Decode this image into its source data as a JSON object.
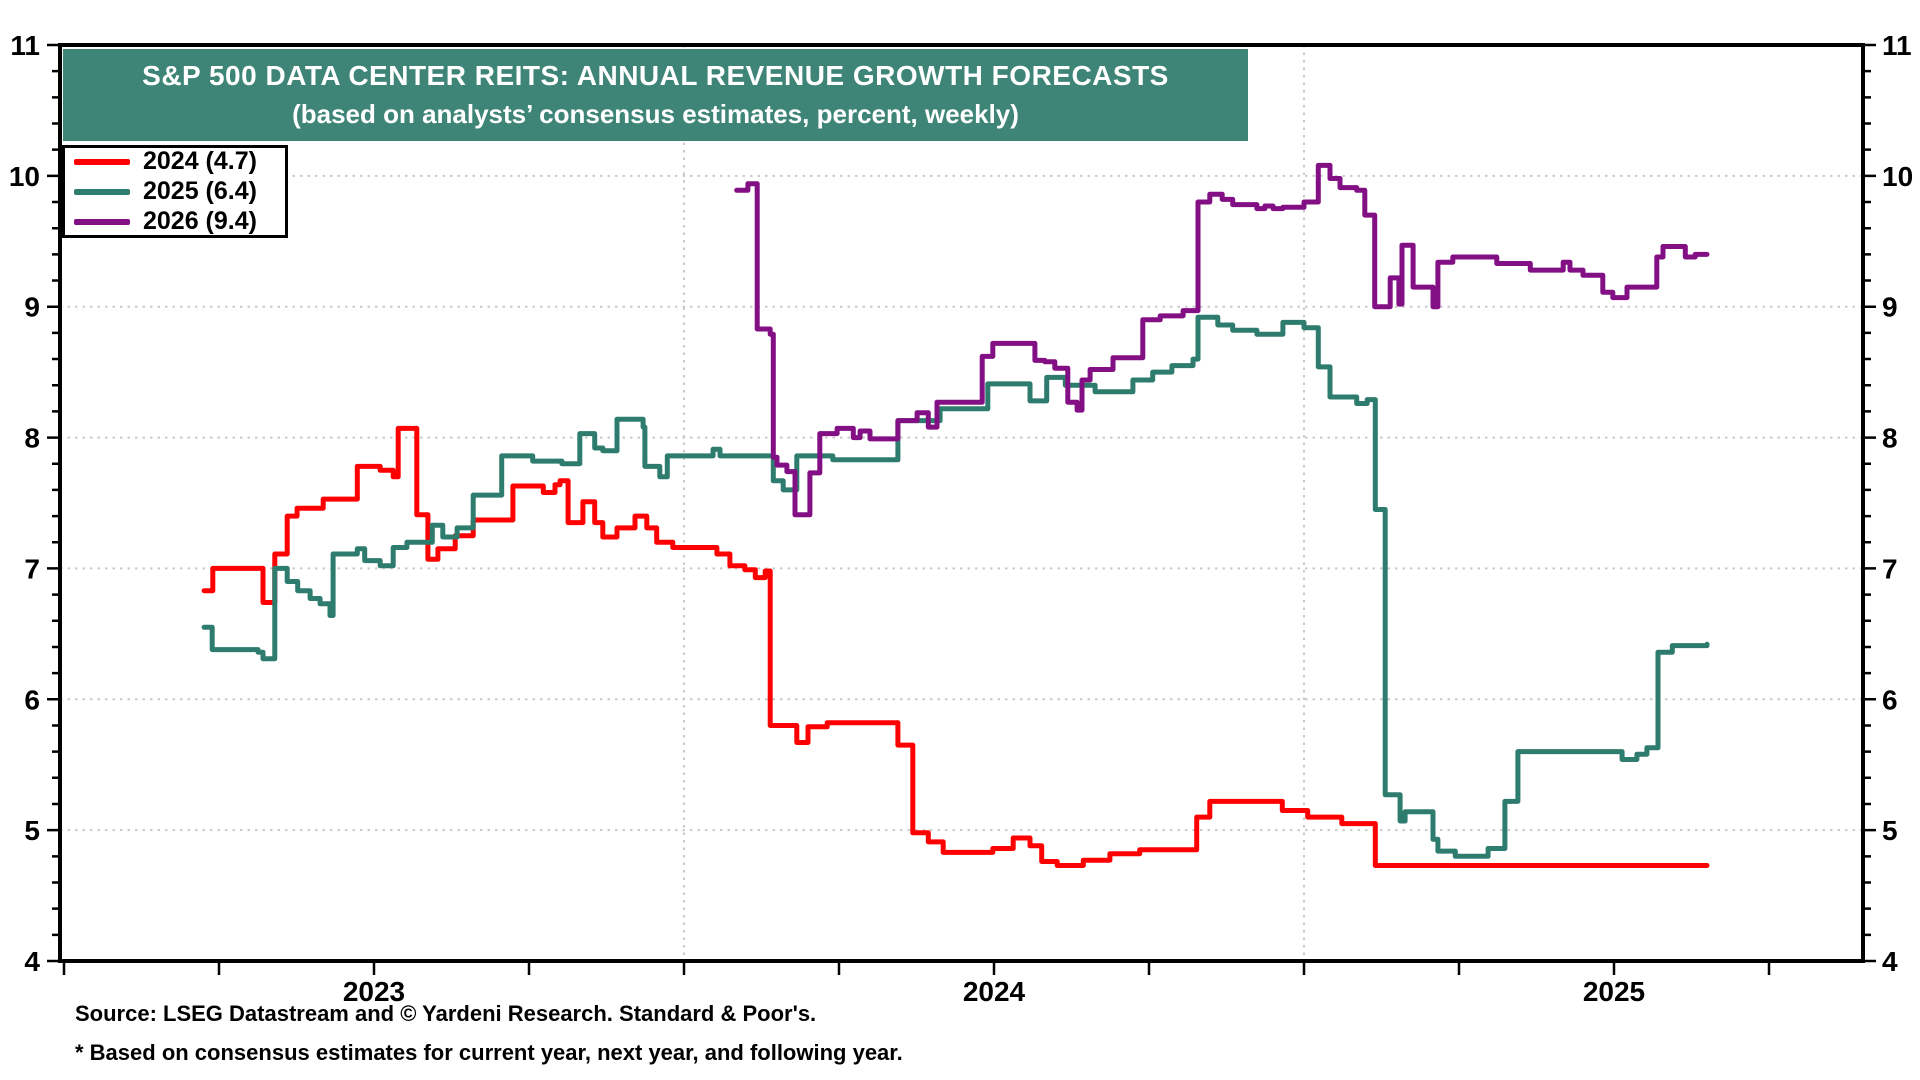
{
  "title": {
    "line1": "S&P 500 DATA CENTER REITS: ANNUAL REVENUE GROWTH FORECASTS",
    "line2": "(based on analysts’ consensus estimates, percent, weekly)"
  },
  "source": {
    "line1": "Source: LSEG Datastream and © Yardeni Research. Standard & Poor's.",
    "line2": "* Based on consensus estimates for current year, next year, and following year."
  },
  "colors": {
    "banner": "#3E8577",
    "background": "#FFFFFF",
    "frame": "#000000",
    "grid": "#C9C9C9",
    "text": "#000000"
  },
  "chart_data": {
    "type": "line",
    "title": "S&P 500 DATA CENTER REITS: ANNUAL REVENUE GROWTH FORECASTS",
    "subtitle": "(based on analysts’ consensus estimates, percent, weekly)",
    "ylabel": "percent",
    "grid": "dotted",
    "legend_position": "top-left",
    "y_axis": {
      "min": 4,
      "max": 11,
      "major_step": 1,
      "minor_step": 0.2,
      "tick_labels": [
        "4",
        "5",
        "6",
        "7",
        "8",
        "9",
        "10",
        "11"
      ],
      "grid_values": [
        5,
        6,
        7,
        8,
        9,
        10
      ],
      "sides": [
        "left",
        "right"
      ]
    },
    "x_axis": {
      "min": 2022.994,
      "max": 2025.902,
      "tick_step_years": 0.25,
      "grid_values": [
        2024,
        2025
      ],
      "year_labels": [
        {
          "text": "2023",
          "t": 2023.5
        },
        {
          "text": "2024",
          "t": 2024.5
        },
        {
          "text": "2025",
          "t": 2025.5
        }
      ]
    },
    "series": [
      {
        "name": "2024",
        "legend_label": "2024 (4.7)",
        "latest_value": 4.7,
        "color": "#FF0000",
        "points": [
          [
            2023.226,
            6.83
          ],
          [
            2023.24,
            7.0
          ],
          [
            2023.321,
            6.74
          ],
          [
            2023.34,
            7.11
          ],
          [
            2023.36,
            7.4
          ],
          [
            2023.376,
            7.46
          ],
          [
            2023.418,
            7.53
          ],
          [
            2023.473,
            7.78
          ],
          [
            2023.51,
            7.75
          ],
          [
            2023.531,
            7.7
          ],
          [
            2023.539,
            8.07
          ],
          [
            2023.569,
            7.41
          ],
          [
            2023.587,
            7.07
          ],
          [
            2023.603,
            7.15
          ],
          [
            2023.631,
            7.25
          ],
          [
            2023.66,
            7.37
          ],
          [
            2023.724,
            7.63
          ],
          [
            2023.773,
            7.58
          ],
          [
            2023.792,
            7.64
          ],
          [
            2023.8,
            7.67
          ],
          [
            2023.813,
            7.35
          ],
          [
            2023.837,
            7.51
          ],
          [
            2023.856,
            7.35
          ],
          [
            2023.869,
            7.24
          ],
          [
            2023.892,
            7.31
          ],
          [
            2023.921,
            7.4
          ],
          [
            2023.94,
            7.31
          ],
          [
            2023.956,
            7.2
          ],
          [
            2023.982,
            7.16
          ],
          [
            2024.053,
            7.11
          ],
          [
            2024.074,
            7.02
          ],
          [
            2024.098,
            6.99
          ],
          [
            2024.115,
            6.93
          ],
          [
            2024.131,
            6.98
          ],
          [
            2024.139,
            5.8
          ],
          [
            2024.182,
            5.67
          ],
          [
            2024.2,
            5.79
          ],
          [
            2024.231,
            5.82
          ],
          [
            2024.345,
            5.65
          ],
          [
            2024.369,
            4.98
          ],
          [
            2024.394,
            4.91
          ],
          [
            2024.418,
            4.83
          ],
          [
            2024.498,
            4.86
          ],
          [
            2024.531,
            4.94
          ],
          [
            2024.558,
            4.88
          ],
          [
            2024.577,
            4.76
          ],
          [
            2024.602,
            4.73
          ],
          [
            2024.644,
            4.77
          ],
          [
            2024.687,
            4.82
          ],
          [
            2024.735,
            4.85
          ],
          [
            2024.827,
            5.1
          ],
          [
            2024.848,
            5.22
          ],
          [
            2024.965,
            5.15
          ],
          [
            2025.006,
            5.1
          ],
          [
            2025.061,
            5.05
          ],
          [
            2025.115,
            4.73
          ],
          [
            2025.65,
            4.73
          ]
        ]
      },
      {
        "name": "2025",
        "legend_label": "2025 (6.4)",
        "latest_value": 6.4,
        "color": "#2E7C6E",
        "points": [
          [
            2023.226,
            6.55
          ],
          [
            2023.239,
            6.38
          ],
          [
            2023.313,
            6.36
          ],
          [
            2023.321,
            6.31
          ],
          [
            2023.34,
            7.0
          ],
          [
            2023.36,
            6.9
          ],
          [
            2023.377,
            6.83
          ],
          [
            2023.397,
            6.77
          ],
          [
            2023.413,
            6.73
          ],
          [
            2023.429,
            6.64
          ],
          [
            2023.434,
            7.11
          ],
          [
            2023.473,
            7.15
          ],
          [
            2023.485,
            7.06
          ],
          [
            2023.51,
            7.02
          ],
          [
            2023.531,
            7.16
          ],
          [
            2023.553,
            7.2
          ],
          [
            2023.594,
            7.33
          ],
          [
            2023.611,
            7.24
          ],
          [
            2023.634,
            7.31
          ],
          [
            2023.66,
            7.56
          ],
          [
            2023.706,
            7.86
          ],
          [
            2023.756,
            7.82
          ],
          [
            2023.803,
            7.8
          ],
          [
            2023.832,
            8.03
          ],
          [
            2023.856,
            7.92
          ],
          [
            2023.869,
            7.9
          ],
          [
            2023.892,
            8.14
          ],
          [
            2023.934,
            8.08
          ],
          [
            2023.937,
            7.78
          ],
          [
            2023.961,
            7.7
          ],
          [
            2023.973,
            7.86
          ],
          [
            2024.047,
            7.91
          ],
          [
            2024.058,
            7.86
          ],
          [
            2024.144,
            7.67
          ],
          [
            2024.16,
            7.6
          ],
          [
            2024.182,
            7.86
          ],
          [
            2024.24,
            7.83
          ],
          [
            2024.345,
            8.13
          ],
          [
            2024.413,
            8.22
          ],
          [
            2024.49,
            8.41
          ],
          [
            2024.558,
            8.28
          ],
          [
            2024.585,
            8.46
          ],
          [
            2024.615,
            8.4
          ],
          [
            2024.663,
            8.35
          ],
          [
            2024.724,
            8.44
          ],
          [
            2024.756,
            8.5
          ],
          [
            2024.787,
            8.55
          ],
          [
            2024.821,
            8.6
          ],
          [
            2024.829,
            8.92
          ],
          [
            2024.861,
            8.86
          ],
          [
            2024.885,
            8.82
          ],
          [
            2024.924,
            8.79
          ],
          [
            2024.966,
            8.88
          ],
          [
            2025.0,
            8.84
          ],
          [
            2025.023,
            8.54
          ],
          [
            2025.042,
            8.31
          ],
          [
            2025.085,
            8.26
          ],
          [
            2025.102,
            8.29
          ],
          [
            2025.115,
            7.45
          ],
          [
            2025.131,
            5.27
          ],
          [
            2025.155,
            5.07
          ],
          [
            2025.163,
            5.14
          ],
          [
            2025.208,
            4.93
          ],
          [
            2025.216,
            4.84
          ],
          [
            2025.244,
            4.8
          ],
          [
            2025.297,
            4.86
          ],
          [
            2025.324,
            5.22
          ],
          [
            2025.345,
            5.6
          ],
          [
            2025.513,
            5.54
          ],
          [
            2025.537,
            5.58
          ],
          [
            2025.553,
            5.63
          ],
          [
            2025.571,
            6.36
          ],
          [
            2025.594,
            6.41
          ],
          [
            2025.65,
            6.42
          ]
        ]
      },
      {
        "name": "2026",
        "legend_label": "2026 (9.4)",
        "latest_value": 9.4,
        "color": "#830F85",
        "points": [
          [
            2024.085,
            9.89
          ],
          [
            2024.103,
            9.94
          ],
          [
            2024.118,
            8.83
          ],
          [
            2024.139,
            8.79
          ],
          [
            2024.144,
            7.85
          ],
          [
            2024.15,
            7.79
          ],
          [
            2024.166,
            7.74
          ],
          [
            2024.179,
            7.41
          ],
          [
            2024.203,
            7.73
          ],
          [
            2024.219,
            8.03
          ],
          [
            2024.247,
            8.07
          ],
          [
            2024.273,
            8.0
          ],
          [
            2024.284,
            8.05
          ],
          [
            2024.3,
            7.99
          ],
          [
            2024.345,
            8.13
          ],
          [
            2024.376,
            8.19
          ],
          [
            2024.394,
            8.08
          ],
          [
            2024.408,
            8.27
          ],
          [
            2024.481,
            8.62
          ],
          [
            2024.498,
            8.72
          ],
          [
            2024.566,
            8.59
          ],
          [
            2024.582,
            8.58
          ],
          [
            2024.598,
            8.53
          ],
          [
            2024.619,
            8.27
          ],
          [
            2024.634,
            8.21
          ],
          [
            2024.642,
            8.44
          ],
          [
            2024.655,
            8.52
          ],
          [
            2024.692,
            8.61
          ],
          [
            2024.74,
            8.9
          ],
          [
            2024.768,
            8.93
          ],
          [
            2024.805,
            8.97
          ],
          [
            2024.829,
            9.8
          ],
          [
            2024.848,
            9.86
          ],
          [
            2024.868,
            9.82
          ],
          [
            2024.885,
            9.78
          ],
          [
            2024.924,
            9.75
          ],
          [
            2024.937,
            9.77
          ],
          [
            2024.95,
            9.75
          ],
          [
            2024.966,
            9.76
          ],
          [
            2025.0,
            9.8
          ],
          [
            2025.023,
            10.08
          ],
          [
            2025.042,
            9.98
          ],
          [
            2025.058,
            9.91
          ],
          [
            2025.085,
            9.89
          ],
          [
            2025.098,
            9.7
          ],
          [
            2025.114,
            9.0
          ],
          [
            2025.139,
            9.22
          ],
          [
            2025.153,
            9.02
          ],
          [
            2025.158,
            9.47
          ],
          [
            2025.176,
            9.15
          ],
          [
            2025.208,
            9.0
          ],
          [
            2025.216,
            9.34
          ],
          [
            2025.24,
            9.38
          ],
          [
            2025.311,
            9.33
          ],
          [
            2025.365,
            9.28
          ],
          [
            2025.418,
            9.34
          ],
          [
            2025.429,
            9.28
          ],
          [
            2025.45,
            9.24
          ],
          [
            2025.482,
            9.11
          ],
          [
            2025.498,
            9.07
          ],
          [
            2025.521,
            9.15
          ],
          [
            2025.569,
            9.38
          ],
          [
            2025.579,
            9.46
          ],
          [
            2025.615,
            9.38
          ],
          [
            2025.631,
            9.4
          ],
          [
            2025.65,
            9.4
          ]
        ]
      }
    ]
  }
}
